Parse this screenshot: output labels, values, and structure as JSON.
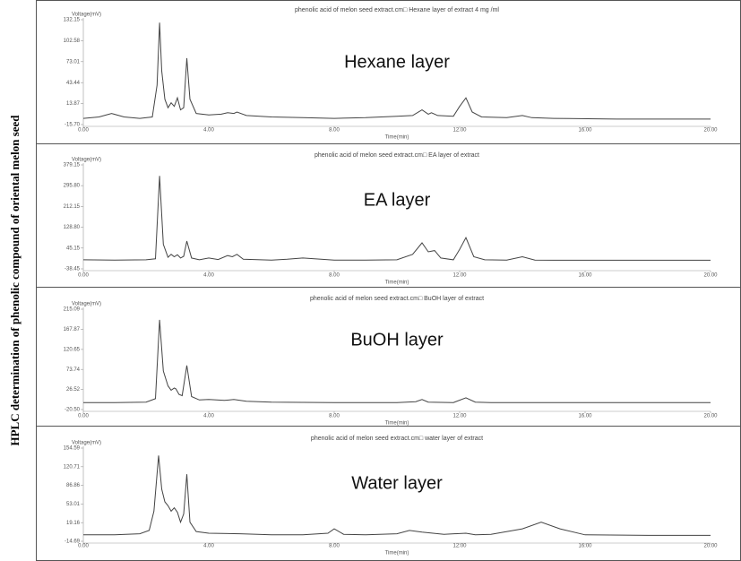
{
  "side_label": "HPLC  determination of phenolic compound of oriental melon seed",
  "chart_data": [
    {
      "type": "line",
      "title": "phenolic acid of melon seed extract.cm□ Hexane layer of extract 4 mg /ml",
      "annotation": "Hexane layer",
      "y_label": "Voltage(mV)",
      "x_label": "Time(min)",
      "color": "#444444",
      "xlim": [
        0,
        20
      ],
      "xticks": [
        {
          "value": 0,
          "label": "0.00"
        },
        {
          "value": 4,
          "label": "4.00"
        },
        {
          "value": 8,
          "label": "8.00"
        },
        {
          "value": 12,
          "label": "12.00"
        },
        {
          "value": 16,
          "label": "16.00"
        },
        {
          "value": 20,
          "label": "20.00"
        }
      ],
      "ylim": [
        -15.7,
        132.15
      ],
      "yticks": [
        {
          "value": -15.7,
          "label": "-15.70"
        },
        13.87,
        43.44,
        73.01,
        102.58,
        132.15
      ],
      "x": [
        0,
        0.5,
        0.9,
        1.3,
        1.8,
        2.2,
        2.35,
        2.43,
        2.5,
        2.6,
        2.7,
        2.8,
        2.9,
        3.0,
        3.1,
        3.2,
        3.3,
        3.4,
        3.6,
        4.0,
        4.4,
        4.6,
        4.8,
        4.9,
        5.2,
        6,
        7,
        8,
        9,
        10,
        10.5,
        10.8,
        11.0,
        11.1,
        11.3,
        11.8,
        12.0,
        12.2,
        12.4,
        12.7,
        13.5,
        14.0,
        14.3,
        15,
        17,
        20
      ],
      "values": [
        -7,
        -5,
        0,
        -5,
        -7,
        -5,
        40,
        128,
        60,
        20,
        8,
        15,
        10,
        22,
        5,
        8,
        78,
        20,
        0,
        -2,
        -1,
        1,
        0,
        2,
        -3,
        -5,
        -6,
        -7,
        -6,
        -4,
        -3,
        5,
        -1,
        1,
        -3,
        -4,
        10,
        22,
        2,
        -5,
        -6,
        -3,
        -6,
        -7,
        -8,
        -8
      ]
    },
    {
      "type": "line",
      "title": "phenolic acid of melon seed extract.cm□ EA layer of extract",
      "annotation": "EA layer",
      "y_label": "Voltage(mV)",
      "x_label": "Time(min)",
      "color": "#444444",
      "xlim": [
        0,
        20
      ],
      "xticks": [
        {
          "value": 0,
          "label": "0.00"
        },
        {
          "value": 4,
          "label": "4.00"
        },
        {
          "value": 8,
          "label": "8.00"
        },
        {
          "value": 12,
          "label": "12.00"
        },
        {
          "value": 16,
          "label": "16.00"
        },
        {
          "value": 20,
          "label": "20.00"
        }
      ],
      "ylim": [
        -38.45,
        379.15
      ],
      "yticks": [
        -38.45,
        45.15,
        {
          "value": 128.8,
          "label": "128.80"
        },
        212.15,
        {
          "value": 295.8,
          "label": "295.80"
        },
        379.15
      ],
      "x": [
        0,
        1,
        2,
        2.3,
        2.43,
        2.55,
        2.7,
        2.8,
        2.9,
        3.0,
        3.1,
        3.2,
        3.3,
        3.45,
        3.7,
        4.0,
        4.3,
        4.6,
        4.75,
        4.9,
        5.1,
        6,
        6.5,
        7,
        8,
        9,
        10,
        10.5,
        10.8,
        11.0,
        11.2,
        11.4,
        11.8,
        12.0,
        12.2,
        12.45,
        12.8,
        13.5,
        14,
        14.4,
        15,
        17,
        18.5,
        20
      ],
      "values": [
        -2,
        -3,
        -2,
        2,
        335,
        60,
        8,
        20,
        10,
        18,
        5,
        12,
        73,
        5,
        -2,
        5,
        -1,
        15,
        10,
        20,
        0,
        -3,
        0,
        5,
        -3,
        -3,
        -2,
        20,
        66,
        30,
        35,
        5,
        -2,
        40,
        87,
        10,
        -2,
        -3,
        10,
        -3,
        -4,
        -4,
        -4,
        -4
      ]
    },
    {
      "type": "line",
      "title": "phenolic acid of melon seed extract.cm□ BuOH layer of extract",
      "annotation": "BuOH layer",
      "y_label": "Voltage(mV)",
      "x_label": "Time(min)",
      "color": "#444444",
      "xlim": [
        0,
        20
      ],
      "xticks": [
        {
          "value": 0,
          "label": "0.00"
        },
        {
          "value": 4,
          "label": "4.00"
        },
        {
          "value": 8,
          "label": "8.00"
        },
        {
          "value": 12,
          "label": "12.00"
        },
        {
          "value": 16,
          "label": "16.00"
        },
        {
          "value": 20,
          "label": "20.00"
        }
      ],
      "ylim": [
        -20.5,
        215.09
      ],
      "yticks": [
        {
          "value": -20.5,
          "label": "-20.50"
        },
        26.52,
        73.74,
        120.65,
        167.87,
        215.09
      ],
      "x": [
        0,
        1,
        2,
        2.3,
        2.43,
        2.55,
        2.7,
        2.8,
        2.9,
        2.95,
        3.05,
        3.15,
        3.3,
        3.45,
        3.7,
        4.0,
        4.5,
        4.8,
        5.2,
        6,
        8,
        10,
        10.6,
        10.8,
        11.0,
        11.8,
        12.2,
        12.5,
        13,
        16,
        20
      ],
      "values": [
        -4,
        -4,
        -3,
        5,
        190,
        70,
        35,
        25,
        30,
        28,
        15,
        12,
        83,
        10,
        2,
        3,
        1,
        3,
        -1,
        -3,
        -4,
        -4,
        -2,
        3,
        -3,
        -4,
        7,
        -3,
        -4,
        -4,
        -4
      ]
    },
    {
      "type": "line",
      "title": "phenolic acid of melon seed extract.cm□ water layer of extract",
      "annotation": "Water layer",
      "y_label": "Voltage(mV)",
      "x_label": "Time(min)",
      "color": "#444444",
      "xlim": [
        0,
        20
      ],
      "xticks": [
        {
          "value": 0,
          "label": "0.00"
        },
        {
          "value": 4,
          "label": "4.00"
        },
        {
          "value": 8,
          "label": "8.00"
        },
        {
          "value": 12,
          "label": "12.00"
        },
        {
          "value": 16,
          "label": "16.00"
        },
        {
          "value": 20,
          "label": "20.00"
        }
      ],
      "ylim": [
        -14.69,
        154.59
      ],
      "yticks": [
        -14.69,
        19.16,
        53.01,
        86.86,
        120.71,
        154.59
      ],
      "x": [
        0,
        1,
        1.8,
        2.1,
        2.25,
        2.4,
        2.5,
        2.6,
        2.7,
        2.8,
        2.9,
        3.0,
        3.1,
        3.2,
        3.3,
        3.4,
        3.6,
        4,
        5,
        6,
        7,
        7.8,
        8.0,
        8.3,
        9,
        10,
        10.4,
        10.8,
        11.5,
        12.2,
        12.5,
        13,
        14,
        14.6,
        15.2,
        16,
        18,
        20
      ],
      "values": [
        -3,
        -3,
        -1,
        5,
        40,
        141,
        80,
        57,
        50,
        40,
        46,
        38,
        20,
        35,
        107,
        20,
        3,
        0,
        -1,
        -3,
        -3,
        0,
        8,
        -2,
        -3,
        -1,
        5,
        2,
        -2,
        0,
        -3,
        -2,
        8,
        20,
        8,
        -3,
        -4,
        -4
      ]
    }
  ]
}
